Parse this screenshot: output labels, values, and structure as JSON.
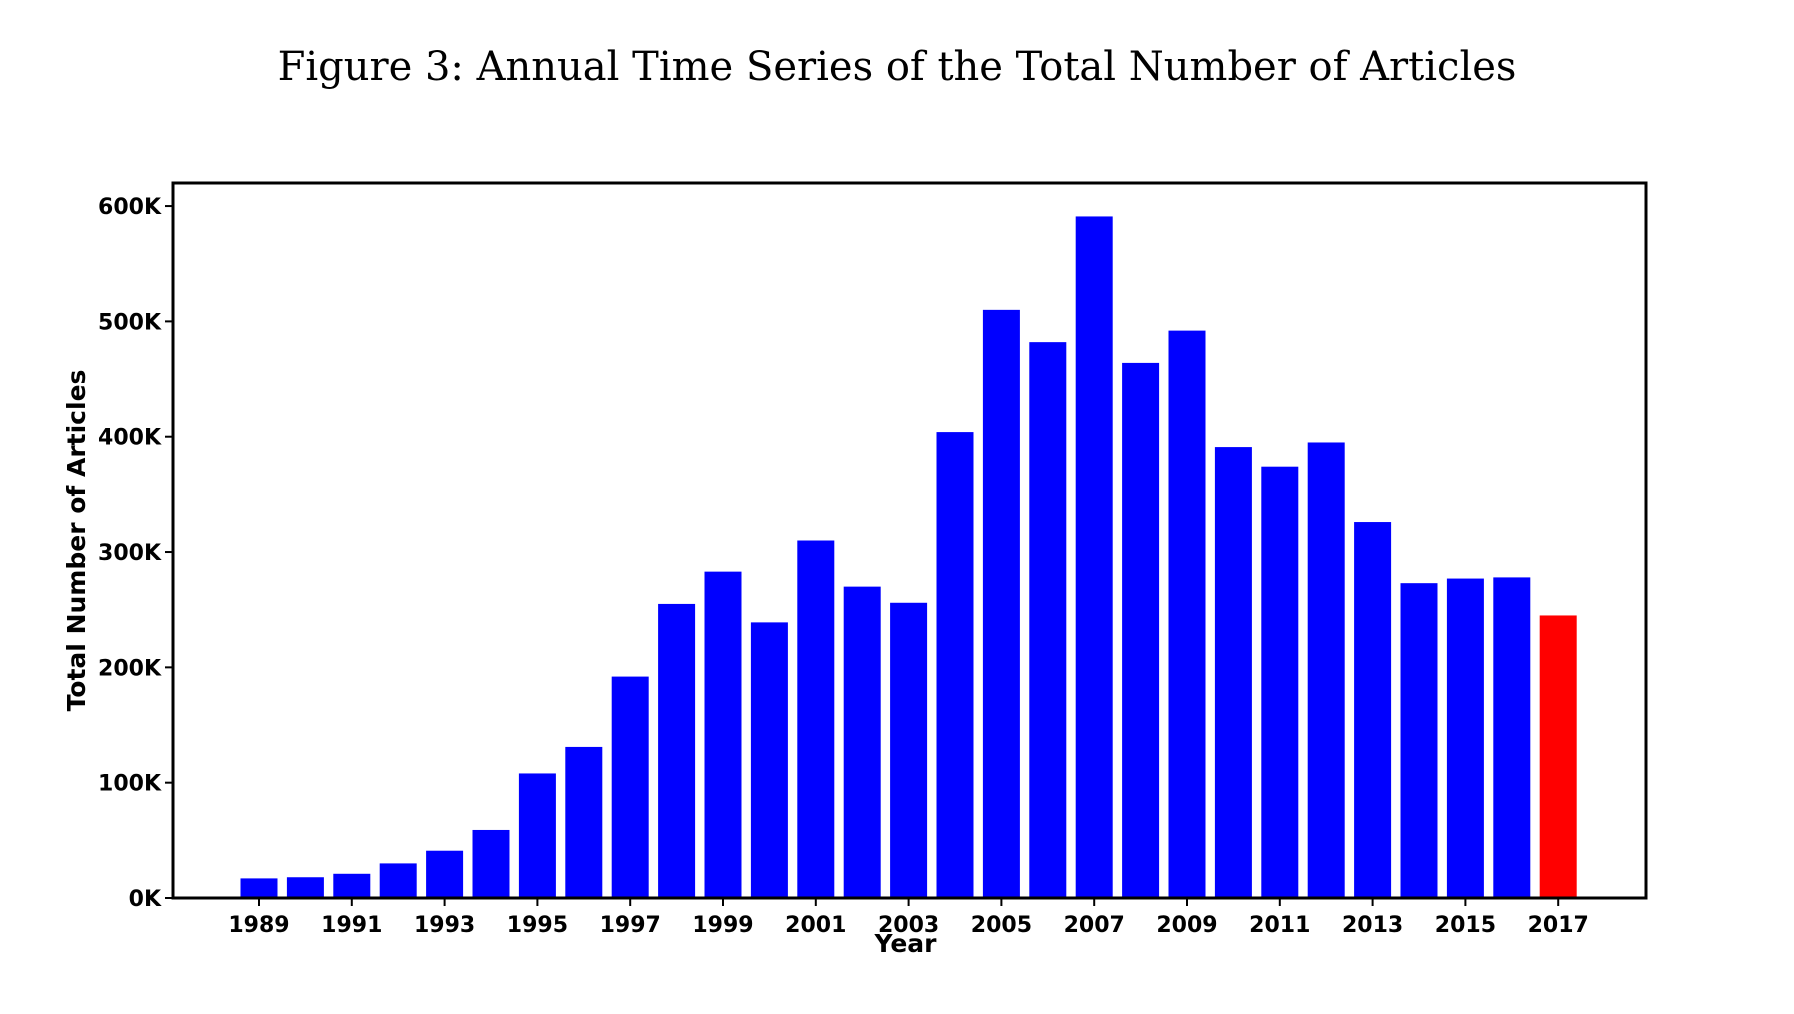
{
  "figure_title": "Figure 3: Annual Time Series of the Total Number of Articles",
  "chart_data": {
    "type": "bar",
    "title": "",
    "xlabel": "Year",
    "ylabel": "Total Number of Articles",
    "ylim": [
      0,
      620000
    ],
    "yticks": [
      0,
      100000,
      200000,
      300000,
      400000,
      500000,
      600000
    ],
    "ytick_labels": [
      "0K",
      "100K",
      "200K",
      "300K",
      "400K",
      "500K",
      "600K"
    ],
    "xtick_labels": [
      "1989",
      "1991",
      "1993",
      "1995",
      "1997",
      "1999",
      "2001",
      "2003",
      "2005",
      "2007",
      "2009",
      "2011",
      "2013",
      "2015",
      "2017"
    ],
    "categories": [
      "1989",
      "1990",
      "1991",
      "1992",
      "1993",
      "1994",
      "1995",
      "1996",
      "1997",
      "1998",
      "1999",
      "2000",
      "2001",
      "2002",
      "2003",
      "2004",
      "2005",
      "2006",
      "2007",
      "2008",
      "2009",
      "2010",
      "2011",
      "2012",
      "2013",
      "2014",
      "2015",
      "2016",
      "2017"
    ],
    "values": [
      17000,
      18000,
      21000,
      30000,
      41000,
      59000,
      108000,
      131000,
      192000,
      255000,
      283000,
      239000,
      310000,
      270000,
      256000,
      404000,
      510000,
      482000,
      591000,
      464000,
      492000,
      391000,
      374000,
      395000,
      326000,
      273000,
      277000,
      278000,
      245000
    ],
    "colors": {
      "default": "#0000ff",
      "highlight": "#ff0000"
    },
    "highlight_category": "2017",
    "grid": false,
    "legend": false
  }
}
